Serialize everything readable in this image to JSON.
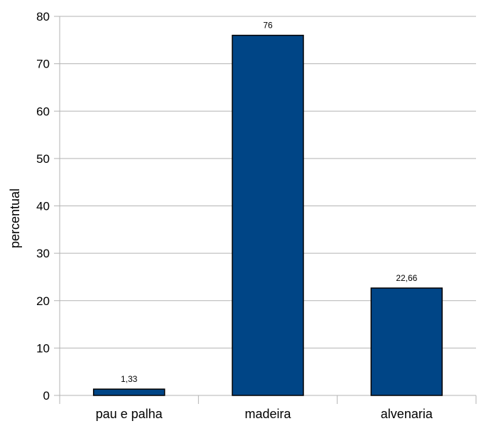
{
  "chart_data": {
    "type": "bar",
    "categories": [
      "pau e palha",
      "madeira",
      "alvenaria"
    ],
    "values": [
      1.33,
      76,
      22.66
    ],
    "data_labels": [
      "1,33",
      "76",
      "22,66"
    ],
    "ylabel": "percentual",
    "ylim": [
      0,
      80
    ],
    "yticks": [
      0,
      10,
      20,
      30,
      40,
      50,
      60,
      70,
      80
    ],
    "grid": true,
    "legend": "none",
    "bar_color": "#004586",
    "bar_stroke": "#000000",
    "grid_color": "#b3b3b3"
  }
}
